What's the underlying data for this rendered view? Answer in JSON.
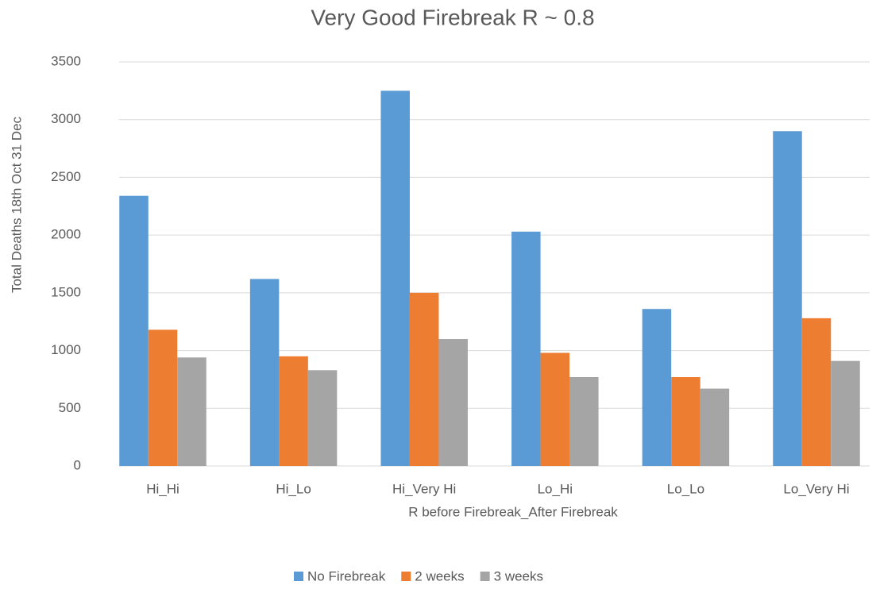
{
  "chart_data": {
    "type": "bar",
    "title": "Very Good Firebreak R ~ 0.8",
    "xlabel": "R before Firebreak_After Firebreak",
    "ylabel": "Total Deaths 18th Oct 31 Dec",
    "categories": [
      "Hi_Hi",
      "Hi_Lo",
      "Hi_Very Hi",
      "Lo_Hi",
      "Lo_Lo",
      "Lo_Very Hi"
    ],
    "series": [
      {
        "name": "No Firebreak",
        "color": "#5b9bd5",
        "values": [
          2340,
          1620,
          3250,
          2030,
          1360,
          2900
        ]
      },
      {
        "name": "2 weeks",
        "color": "#ed7d31",
        "values": [
          1180,
          950,
          1500,
          980,
          770,
          1280
        ]
      },
      {
        "name": "3 weeks",
        "color": "#a5a5a5",
        "values": [
          940,
          830,
          1100,
          770,
          670,
          910
        ]
      }
    ],
    "ylim": [
      0,
      3500
    ],
    "yticks": [
      0,
      500,
      1000,
      1500,
      2000,
      2500,
      3000,
      3500
    ],
    "grid": true,
    "legend": "bottom"
  }
}
